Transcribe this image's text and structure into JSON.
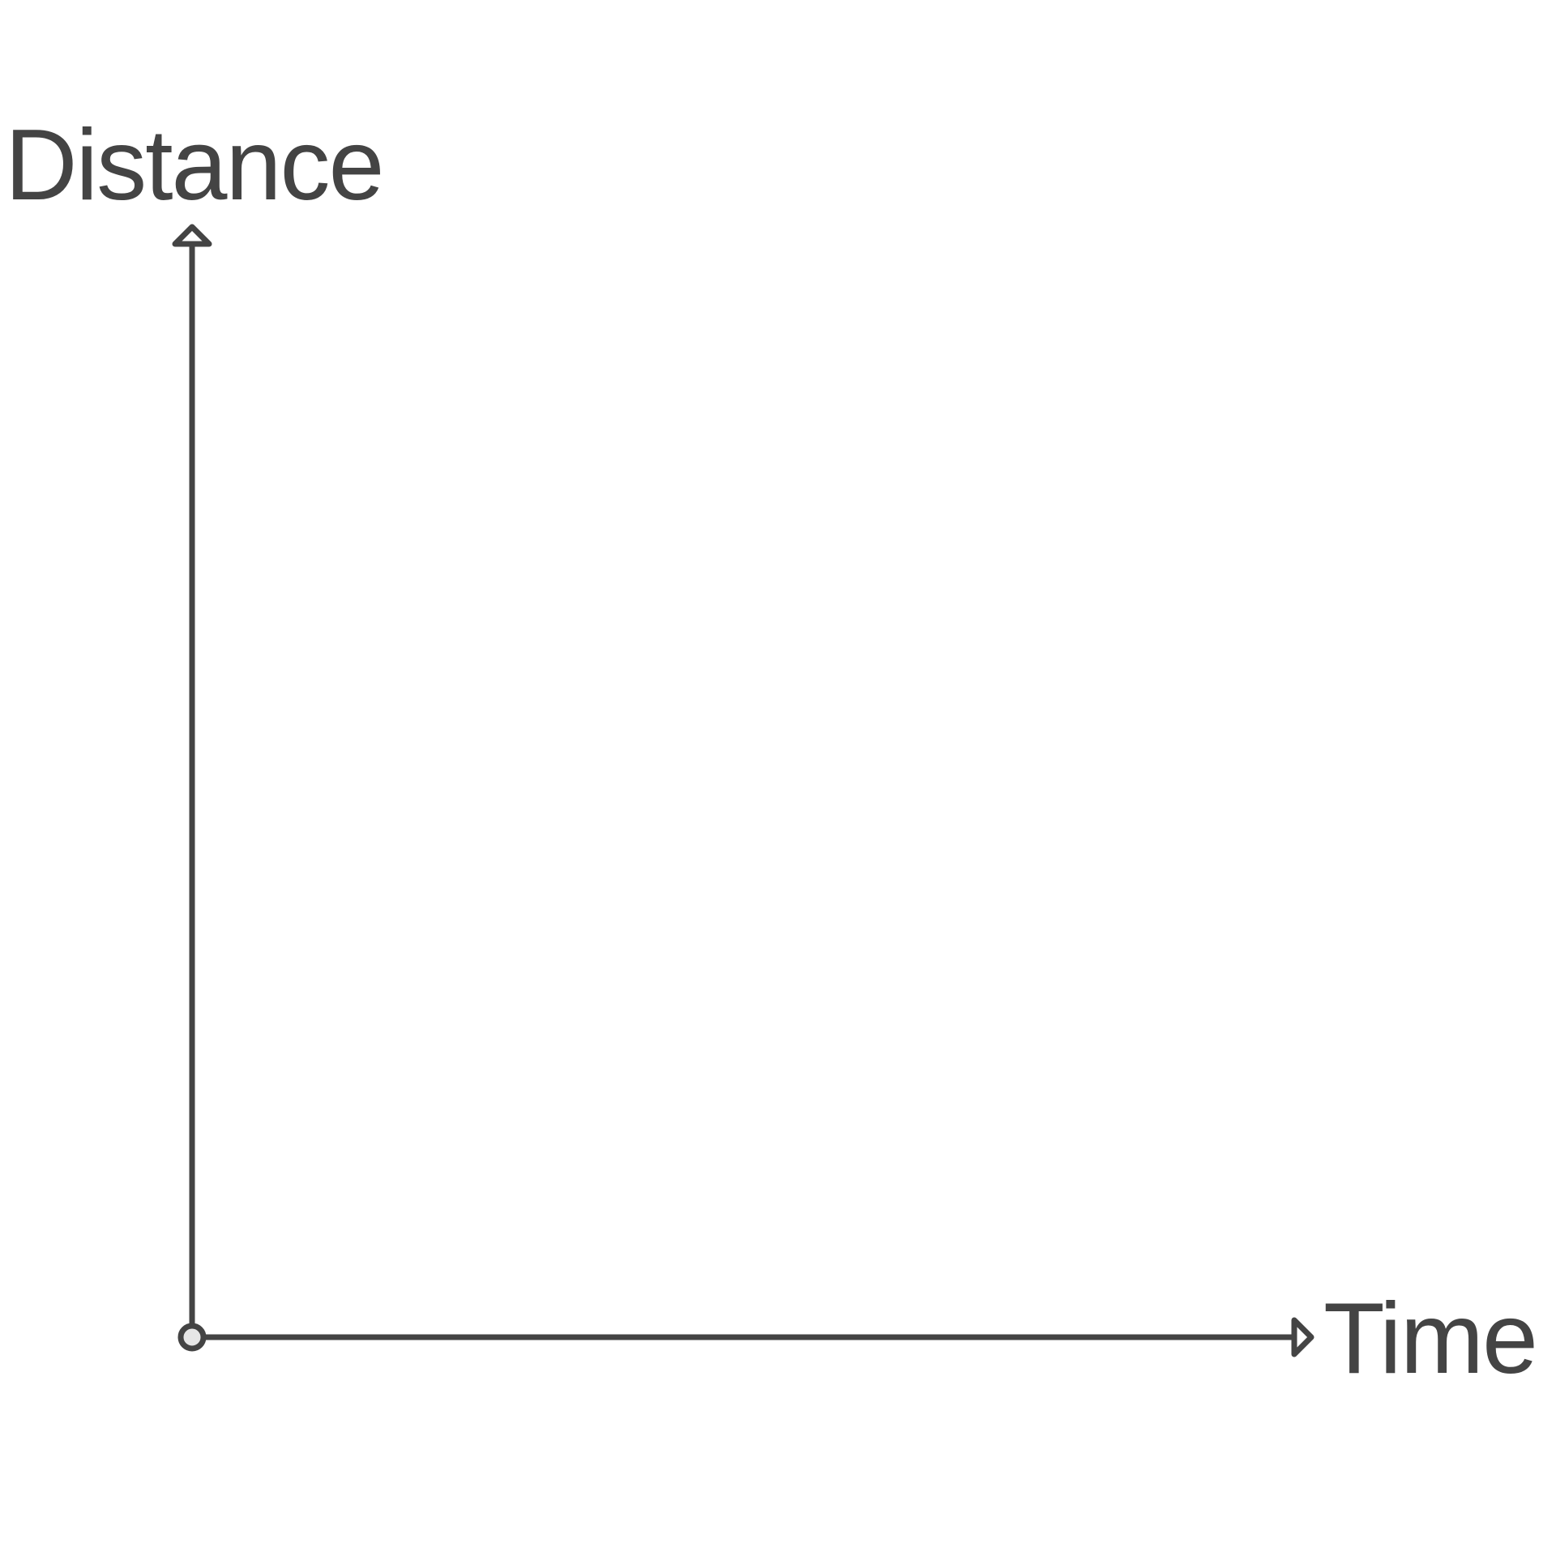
{
  "chart_data": {
    "type": "line",
    "title": "",
    "xlabel": "Time",
    "ylabel": "Distance",
    "series": [],
    "grid": false,
    "ticks": false
  },
  "colors": {
    "axis": "#444444",
    "origin_fill": "#e6e6e6",
    "background": "#ffffff"
  }
}
